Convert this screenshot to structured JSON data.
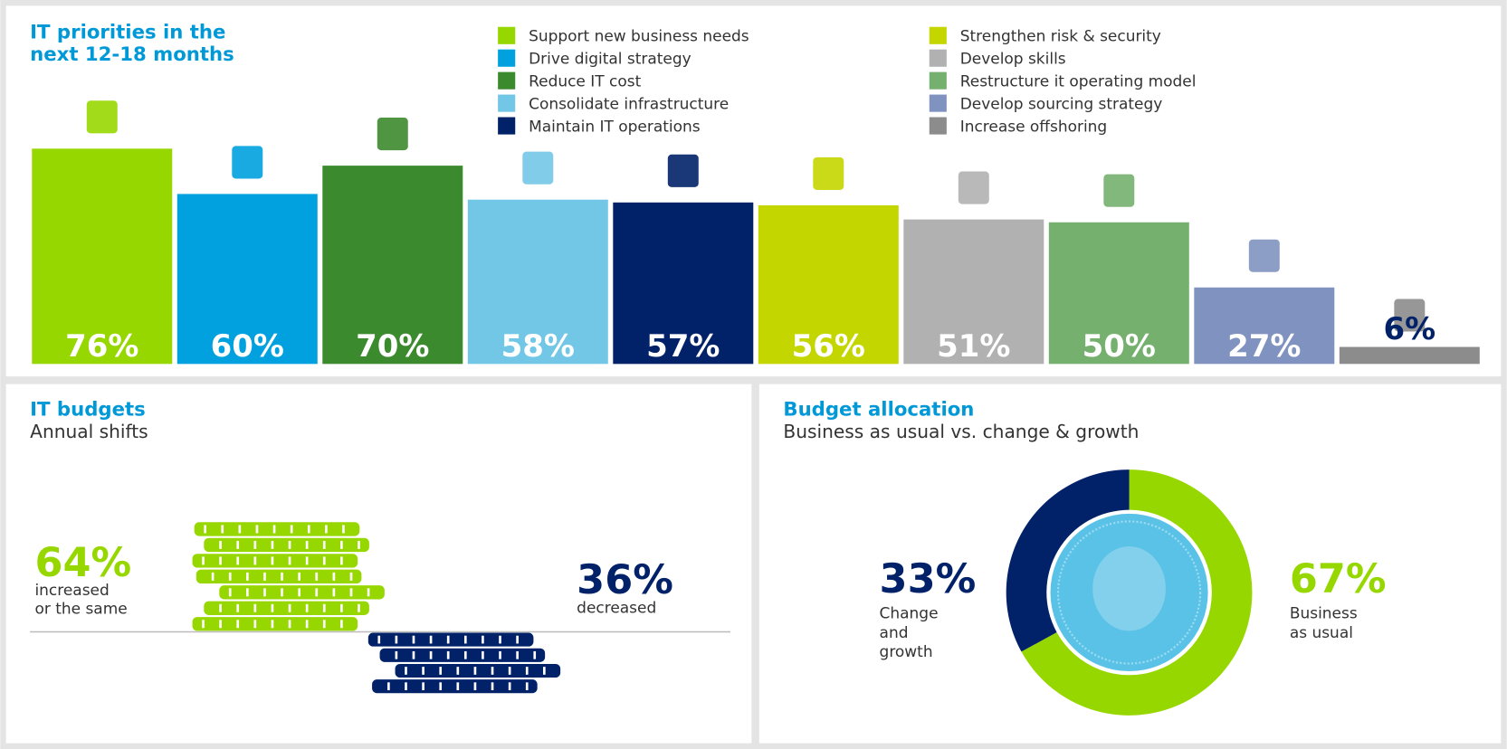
{
  "chart_data": [
    {
      "type": "bar",
      "title": "IT priorities in the next 12-18 months",
      "categories": [
        "Support new business needs",
        "Drive digital strategy",
        "Reduce IT cost",
        "Consolidate infrastructure",
        "Maintain IT operations",
        "Strengthen risk & security",
        "Develop skills",
        "Restructure it operating model",
        "Develop sourcing strategy",
        "Increase offshoring"
      ],
      "values": [
        76,
        60,
        70,
        58,
        57,
        56,
        51,
        50,
        27,
        6
      ],
      "value_labels": [
        "76%",
        "60%",
        "70%",
        "58%",
        "57%",
        "56%",
        "51%",
        "50%",
        "27%",
        "6%"
      ],
      "colors": [
        "#97d700",
        "#00a1de",
        "#3c8a2e",
        "#72c7e7",
        "#012169",
        "#c4d600",
        "#b1b1b1",
        "#76b06e",
        "#7f92c0",
        "#8c8c8c"
      ],
      "ylim": [
        0,
        100
      ]
    },
    {
      "type": "coin-stack",
      "title": "IT budgets",
      "subtitle": "Annual shifts",
      "categories": [
        "increased or the same",
        "decreased"
      ],
      "values": [
        64,
        36
      ],
      "value_labels": [
        "64%",
        "36%"
      ],
      "colors": [
        "#97d700",
        "#012169"
      ]
    },
    {
      "type": "donut",
      "title": "Budget allocation",
      "subtitle": "Business as usual vs. change & growth",
      "categories": [
        "Change and growth",
        "Business as usual"
      ],
      "values": [
        33,
        67
      ],
      "value_labels": [
        "33%",
        "67%"
      ],
      "colors": [
        "#012169",
        "#97d700"
      ]
    }
  ]
}
